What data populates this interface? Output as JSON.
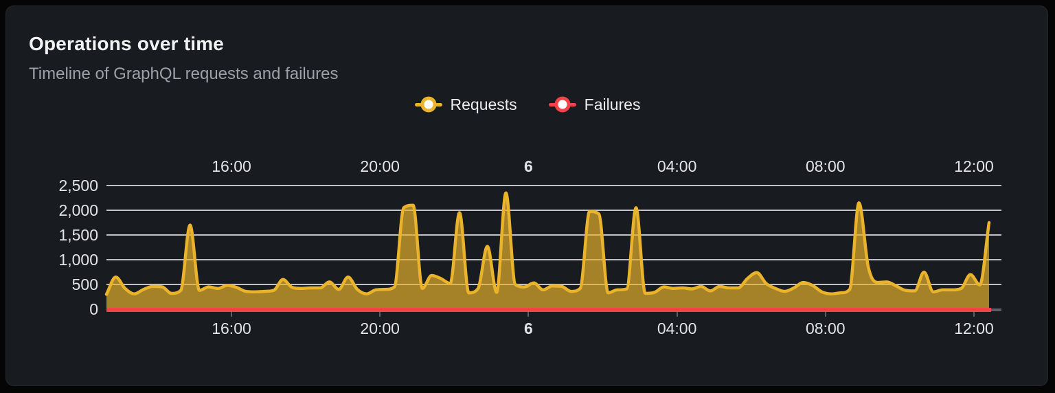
{
  "panel": {
    "title": "Operations over time",
    "subtitle": "Timeline of GraphQL requests and failures"
  },
  "chart_data": {
    "type": "area",
    "title": "Operations over time",
    "legend_position": "top-center",
    "grid": true,
    "x_axis": {
      "ticks": [
        {
          "label": "16:00",
          "bold": false
        },
        {
          "label": "20:00",
          "bold": false
        },
        {
          "label": "6",
          "bold": true
        },
        {
          "label": "04:00",
          "bold": false
        },
        {
          "label": "08:00",
          "bold": false
        },
        {
          "label": "12:00",
          "bold": false
        }
      ],
      "mirrored_top_and_bottom": true,
      "tick_interval": "4 hours"
    },
    "y_axis": {
      "min": 0,
      "max": 2500,
      "step": 500,
      "tick_labels": [
        "0",
        "500",
        "1,000",
        "1,500",
        "2,000",
        "2,500"
      ]
    },
    "series": [
      {
        "name": "Requests",
        "color": "#E9B32B",
        "fill_opacity": 0.68,
        "values": [
          300,
          650,
          420,
          310,
          400,
          460,
          450,
          320,
          380,
          1700,
          380,
          450,
          420,
          480,
          440,
          360,
          350,
          360,
          380,
          600,
          440,
          420,
          430,
          430,
          550,
          400,
          650,
          400,
          310,
          390,
          400,
          450,
          2050,
          2100,
          420,
          680,
          620,
          520,
          1950,
          330,
          420,
          1270,
          340,
          2350,
          500,
          450,
          530,
          390,
          470,
          460,
          360,
          420,
          1975,
          1925,
          330,
          390,
          410,
          2050,
          320,
          340,
          450,
          420,
          430,
          410,
          460,
          370,
          460,
          430,
          430,
          620,
          740,
          520,
          420,
          360,
          430,
          540,
          480,
          350,
          310,
          330,
          400,
          2150,
          850,
          540,
          550,
          470,
          380,
          370,
          750,
          350,
          390,
          390,
          420,
          700,
          490,
          1750
        ]
      },
      {
        "name": "Failures",
        "color": "#F1434A",
        "constant_value": 0
      }
    ]
  },
  "colors": {
    "background": "#050505",
    "card": "#181B1F",
    "card_border": "#24272D",
    "title_text": "#F2F3F5",
    "subtitle_text": "#9DA1A8",
    "axis_label": "#E3E4E8",
    "gridline": "rgba(216,218,224,0.88)",
    "axis_baseline": "#5A5E66",
    "requests": "#E9B32B",
    "failures": "#F1434A"
  }
}
